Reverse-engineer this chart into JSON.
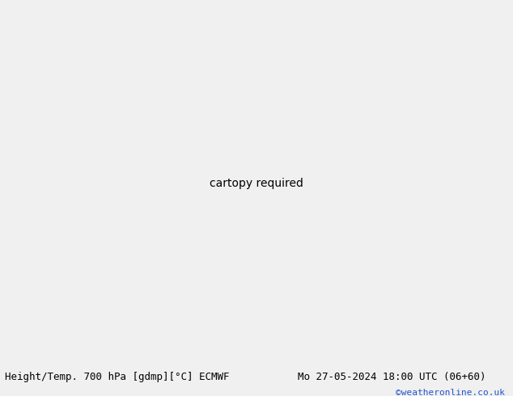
{
  "title_left": "Height/Temp. 700 hPa [gdmp][°C] ECMWF",
  "title_right": "Mo 27-05-2024 18:00 UTC (06+60)",
  "copyright": "©weatheronline.co.uk",
  "bg_color": "#e8e8e8",
  "ocean_color": "#e0e0e8",
  "land_color": "#b8e8b0",
  "land_edge_color": "#a0a0a0",
  "figsize": [
    6.34,
    4.9
  ],
  "dpi": 100,
  "bottom_bar_color": "#f0f0f0",
  "title_fontsize": 9.0,
  "copyright_color": "#2255cc",
  "copyright_fontsize": 8,
  "lon_min": 60,
  "lon_max": 185,
  "lat_min": -65,
  "lat_max": 25
}
